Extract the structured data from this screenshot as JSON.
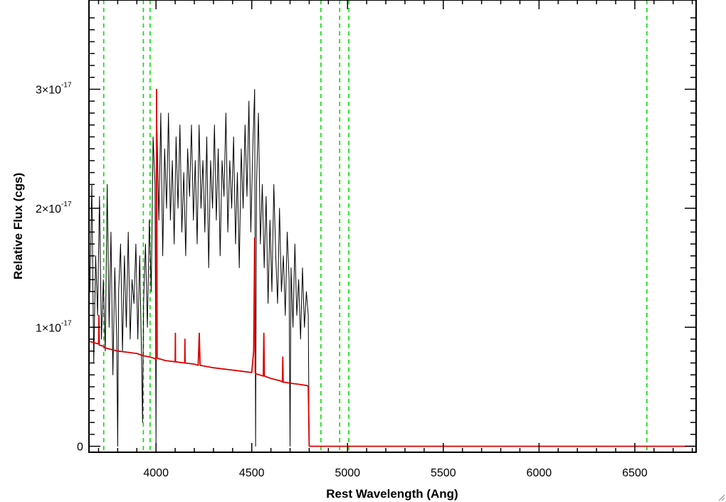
{
  "chart_data": {
    "type": "line",
    "title": "",
    "xlabel": "Rest Wavelength (Ang)",
    "ylabel": "Relative Flux (cgs)",
    "xlim": [
      3650,
      6820
    ],
    "ylim": [
      -5e-19,
      3.75e-17
    ],
    "grid": false,
    "x_ticks": [
      {
        "value": 4000,
        "label": "4000"
      },
      {
        "value": 4500,
        "label": "4500"
      },
      {
        "value": 5000,
        "label": "5000"
      },
      {
        "value": 5500,
        "label": "5500"
      },
      {
        "value": 6000,
        "label": "6000"
      },
      {
        "value": 6500,
        "label": "6500"
      }
    ],
    "y_ticks": [
      {
        "value": 0,
        "label": "0",
        "exp": ""
      },
      {
        "value": 1e-17,
        "label": "1×10",
        "exp": "-17"
      },
      {
        "value": 2e-17,
        "label": "2×10",
        "exp": "-17"
      },
      {
        "value": 3e-17,
        "label": "3×10",
        "exp": "-17"
      }
    ],
    "line_markers": {
      "color": "#00dd00",
      "style": "dashed",
      "x": [
        3727,
        3934,
        3969,
        4861,
        4959,
        5007,
        6563
      ]
    },
    "series": [
      {
        "color": "#000000",
        "x": [
          3655,
          3665,
          3675,
          3685,
          3695,
          3705,
          3715,
          3725,
          3735,
          3745,
          3755,
          3765,
          3775,
          3785,
          3795,
          3800,
          3805,
          3815,
          3825,
          3835,
          3845,
          3855,
          3865,
          3875,
          3885,
          3895,
          3905,
          3915,
          3925,
          3930,
          3935,
          3945,
          3955,
          3965,
          3975,
          3985,
          3995,
          4000,
          4005,
          4015,
          4025,
          4035,
          4045,
          4055,
          4065,
          4075,
          4085,
          4095,
          4105,
          4115,
          4125,
          4135,
          4145,
          4155,
          4165,
          4175,
          4185,
          4195,
          4205,
          4215,
          4225,
          4235,
          4245,
          4255,
          4265,
          4275,
          4285,
          4295,
          4305,
          4315,
          4325,
          4335,
          4345,
          4355,
          4365,
          4375,
          4385,
          4395,
          4405,
          4415,
          4425,
          4435,
          4445,
          4455,
          4465,
          4475,
          4485,
          4495,
          4505,
          4515,
          4520,
          4525,
          4535,
          4545,
          4555,
          4565,
          4575,
          4585,
          4595,
          4605,
          4615,
          4625,
          4635,
          4645,
          4655,
          4665,
          4675,
          4685,
          4695,
          4700,
          4705,
          4715,
          4725,
          4735,
          4745,
          4755,
          4765,
          4775,
          4785,
          4795,
          4800
        ],
        "y": [
          1.3e-17,
          2.2e-17,
          7e-18,
          1.6e-17,
          1.1e-17,
          2.1e-17,
          9e-18,
          1.4e-17,
          8e-18,
          2.2e-17,
          1e-17,
          1.8e-17,
          6e-18,
          1.5e-17,
          9e-18,
          0.0,
          1.3e-17,
          1.7e-17,
          8e-18,
          1.6e-17,
          1e-17,
          1.8e-17,
          9e-18,
          1.4e-17,
          1.2e-17,
          1.7e-17,
          9e-18,
          1.6e-17,
          7e-18,
          2e-18,
          1.2e-17,
          1.7e-17,
          1e-17,
          1.9e-17,
          1.3e-17,
          2.6e-17,
          2.2e-17,
          0.0,
          2.7e-17,
          1.9e-17,
          2.8e-17,
          1.6e-17,
          2.5e-17,
          2e-17,
          2.8e-17,
          1.9e-17,
          2.4e-17,
          1.7e-17,
          2.6e-17,
          2e-17,
          2.7e-17,
          1.8e-17,
          2.3e-17,
          1.6e-17,
          2.5e-17,
          2.1e-17,
          2.7e-17,
          1.9e-17,
          2.4e-17,
          1.7e-17,
          2.7e-17,
          2e-17,
          2.4e-17,
          1.8e-17,
          2.6e-17,
          1.5e-17,
          2.4e-17,
          2e-17,
          2.7e-17,
          1.9e-17,
          2.5e-17,
          1.6e-17,
          2.4e-17,
          2.1e-17,
          2.8e-17,
          1.8e-17,
          2.4e-17,
          2e-17,
          2.6e-17,
          1.7e-17,
          2.3e-17,
          1.5e-17,
          2.5e-17,
          2e-17,
          2.7e-17,
          2.1e-17,
          2.9e-17,
          1.8e-17,
          2.5e-17,
          3e-17,
          0.0,
          2.2e-17,
          2.8e-17,
          1.7e-17,
          2.2e-17,
          1.5e-17,
          2.1e-17,
          1.2e-17,
          1.9e-17,
          1.3e-17,
          2.2e-17,
          1.6e-17,
          1.2e-17,
          2e-17,
          1.3e-17,
          1.6e-17,
          1.1e-17,
          1.8e-17,
          1.4e-17,
          0.0,
          1.5e-17,
          1e-17,
          1.7e-17,
          1.1e-17,
          1.4e-17,
          9e-18,
          1.5e-17,
          1e-17,
          1.3e-17,
          1.1e-17,
          0.0
        ]
      },
      {
        "color": "#dd0000",
        "x": [
          3655,
          3700,
          3702,
          3704,
          3727,
          3730,
          3750,
          3800,
          3850,
          3900,
          3934,
          3969,
          3990,
          4000,
          4003,
          4006,
          4050,
          4100,
          4101,
          4102,
          4150,
          4151,
          4152,
          4200,
          4220,
          4226,
          4230,
          4300,
          4400,
          4450,
          4500,
          4510,
          4515,
          4518,
          4520,
          4540,
          4560,
          4563,
          4566,
          4600,
          4650,
          4660,
          4662,
          4664,
          4700,
          4750,
          4790,
          4795,
          4800,
          4802,
          4900,
          5000,
          5500,
          6000,
          6500,
          6820
        ],
        "y": [
          8.8e-18,
          8.6e-18,
          1.1e-17,
          8.5e-18,
          8.4e-18,
          8.3e-18,
          8.2e-18,
          8e-18,
          7.9e-18,
          7.8e-18,
          7.6e-18,
          7.5e-18,
          7.4e-18,
          7.3e-18,
          3e-17,
          7.4e-18,
          7.2e-18,
          7.1e-18,
          9.5e-18,
          7.1e-18,
          7e-18,
          9e-18,
          7e-18,
          6.9e-18,
          6.8e-18,
          9.5e-18,
          6.8e-18,
          6.6e-18,
          6.4e-18,
          6.3e-18,
          6.2e-18,
          8e-18,
          1.75e-17,
          6.2e-18,
          6.1e-18,
          6e-18,
          5.9e-18,
          9.5e-18,
          5.9e-18,
          5.7e-18,
          5.5e-18,
          5.4e-18,
          7.5e-18,
          5.4e-18,
          5.3e-18,
          5.2e-18,
          5.1e-18,
          5e-18,
          0.0,
          0.0,
          0.0,
          0.0,
          0.0,
          0.0,
          0.0,
          0.0
        ]
      }
    ]
  }
}
